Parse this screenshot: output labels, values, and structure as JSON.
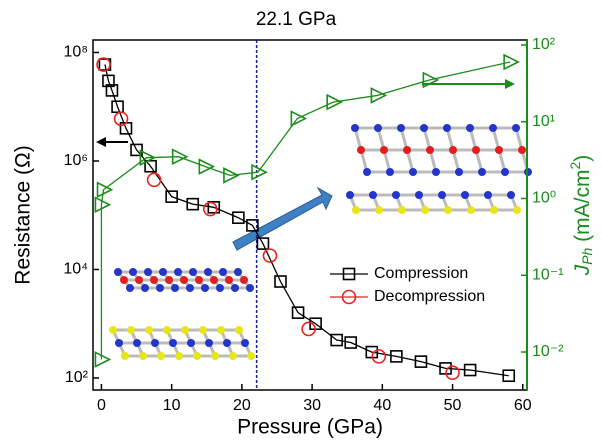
{
  "chart_data": {
    "type": "scatter",
    "title": "22.1 GPa",
    "x_label": "Pressure (GPa)",
    "y_label": "Resistance (Ω)",
    "y2_label": {
      "main": "J",
      "sub": "Ph",
      "unit": " (mA/cm",
      "sup": "2",
      "close": ")"
    },
    "xlim": [
      -1.2,
      60.6
    ],
    "xticks": [
      0,
      10,
      20,
      30,
      40,
      50,
      60
    ],
    "ylim": [
      60,
      170000000
    ],
    "log_y": true,
    "yticks": [
      {
        "value": 100,
        "label": "10²"
      },
      {
        "value": 10000,
        "label": "10⁴"
      },
      {
        "value": 1000000,
        "label": "10⁶"
      },
      {
        "value": 100000000,
        "label": "10⁸"
      }
    ],
    "y2lim": [
      0.0032,
      116
    ],
    "log_y2": true,
    "y2ticks": [
      {
        "value": 0.01,
        "label": "10⁻²"
      },
      {
        "value": 0.1,
        "label": "10⁻¹"
      },
      {
        "value": 1,
        "label": "10⁰"
      },
      {
        "value": 10,
        "label": "10¹"
      },
      {
        "value": 100,
        "label": "10²"
      }
    ],
    "vline": 22.1,
    "legend": "lower right",
    "series": [
      {
        "name": "Compression",
        "color": "#000000",
        "marker": "square",
        "line": true,
        "axis": "y",
        "x": [
          0.5,
          1.0,
          1.5,
          2.3,
          3.5,
          5.0,
          7.0,
          10,
          13,
          16,
          19.5,
          21.5,
          23,
          25.5,
          28,
          30.5,
          33.5,
          35.5,
          38.5,
          42,
          45.5,
          49,
          52.5,
          58
        ],
        "values": [
          60000000,
          30000000,
          20000000,
          10000000,
          4000000,
          1600000,
          800000,
          220000,
          160000,
          140000,
          90000,
          65000,
          30000,
          6000,
          1600,
          1000,
          500,
          450,
          300,
          250,
          200,
          150,
          140,
          110
        ]
      },
      {
        "name": "Decompression",
        "color": "#e8231e",
        "marker": "circle",
        "line": false,
        "axis": "y",
        "x": [
          0.3,
          2.8,
          7.5,
          15.5,
          24,
          29.5,
          39.5,
          50
        ],
        "values": [
          60000000,
          6000000,
          450000,
          130000,
          18000,
          800,
          250,
          125
        ]
      },
      {
        "color": "#1a8c1a",
        "marker": "triangle",
        "line": true,
        "axis": "y2",
        "x": [
          0,
          0,
          0.3,
          6.4,
          11,
          14.8,
          18.3,
          22.3,
          27.9,
          33,
          39.3,
          46.7,
          58.2
        ],
        "values": [
          0.008,
          0.83,
          1.3,
          3.4,
          3.5,
          2.6,
          2.0,
          2.2,
          11,
          18,
          22,
          35,
          60
        ]
      }
    ]
  }
}
